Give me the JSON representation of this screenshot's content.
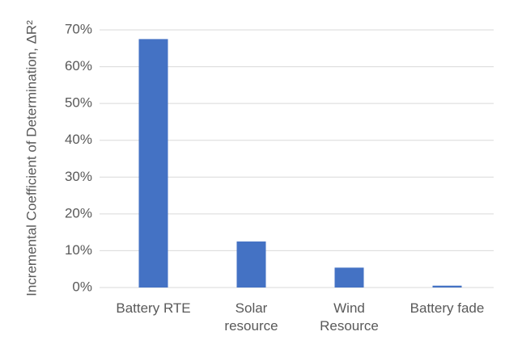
{
  "chart_data": {
    "type": "bar",
    "y_label": "Incremental Coefficient of Determination, ΔR²",
    "categories": [
      "Battery RTE",
      "Solar resource",
      "Wind Resource",
      "Battery fade"
    ],
    "values": [
      67.5,
      12.5,
      5.4,
      0.5
    ],
    "color": "#4472c4",
    "ylim": [
      0,
      70
    ],
    "yticks": [
      {
        "value": 0,
        "label": "0%"
      },
      {
        "value": 10,
        "label": "10%"
      },
      {
        "value": 20,
        "label": "20%"
      },
      {
        "value": 30,
        "label": "30%"
      },
      {
        "value": 40,
        "label": "40%"
      },
      {
        "value": 50,
        "label": "50%"
      },
      {
        "value": 60,
        "label": "60%"
      },
      {
        "value": 70,
        "label": "70%"
      }
    ],
    "grid": true
  }
}
